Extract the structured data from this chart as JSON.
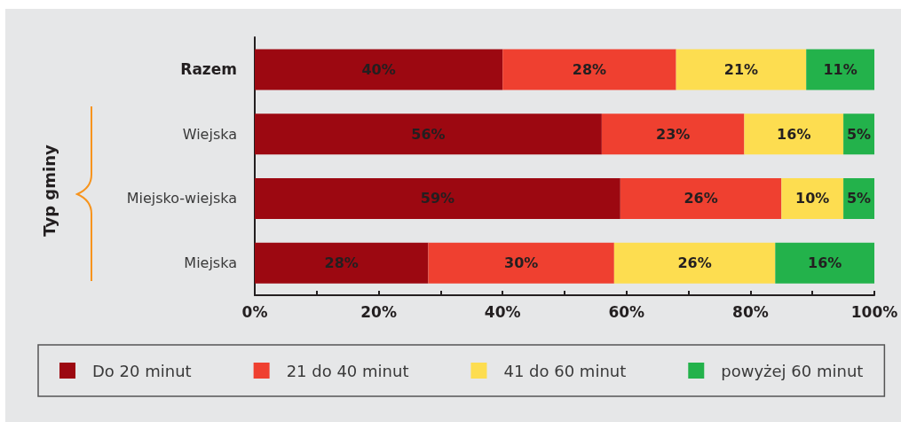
{
  "chart_data": {
    "type": "bar",
    "orientation": "horizontal",
    "stacked": true,
    "ylabel": "Typ gminy",
    "categories": [
      "Razem",
      "Wiejska",
      "Miejsko-wiejska",
      "Miejska"
    ],
    "series": [
      {
        "name": "Do 20 minut",
        "color": "#9c0811",
        "values": [
          40,
          56,
          59,
          28
        ],
        "value_labels": [
          "40%",
          "56%",
          "59%",
          "28%"
        ]
      },
      {
        "name": "21 do 40 minut",
        "color": "#ef4030",
        "values": [
          28,
          23,
          26,
          30
        ],
        "value_labels": [
          "28%",
          "23%",
          "26%",
          "30%"
        ]
      },
      {
        "name": "41 do 60 minut",
        "color": "#fddd50",
        "values": [
          21,
          16,
          10,
          26
        ],
        "value_labels": [
          "21%",
          "16%",
          "10%",
          "26%"
        ]
      },
      {
        "name": "powyżej 60 minut",
        "color": "#23b24b",
        "values": [
          11,
          5,
          5,
          16
        ],
        "value_labels": [
          "11%",
          "5%",
          "5%",
          "16%"
        ]
      }
    ],
    "xlim": [
      0,
      100
    ],
    "xticks": [
      {
        "value": 0,
        "label": "0%"
      },
      {
        "value": 10,
        "label": null
      },
      {
        "value": 20,
        "label": "20%"
      },
      {
        "value": 30,
        "label": null
      },
      {
        "value": 40,
        "label": "40%"
      },
      {
        "value": 50,
        "label": null
      },
      {
        "value": 60,
        "label": "60%"
      },
      {
        "value": 70,
        "label": null
      },
      {
        "value": 80,
        "label": "80%"
      },
      {
        "value": 90,
        "label": null
      },
      {
        "value": 100,
        "label": "100%"
      }
    ],
    "grid": false,
    "legend": "bottom"
  }
}
